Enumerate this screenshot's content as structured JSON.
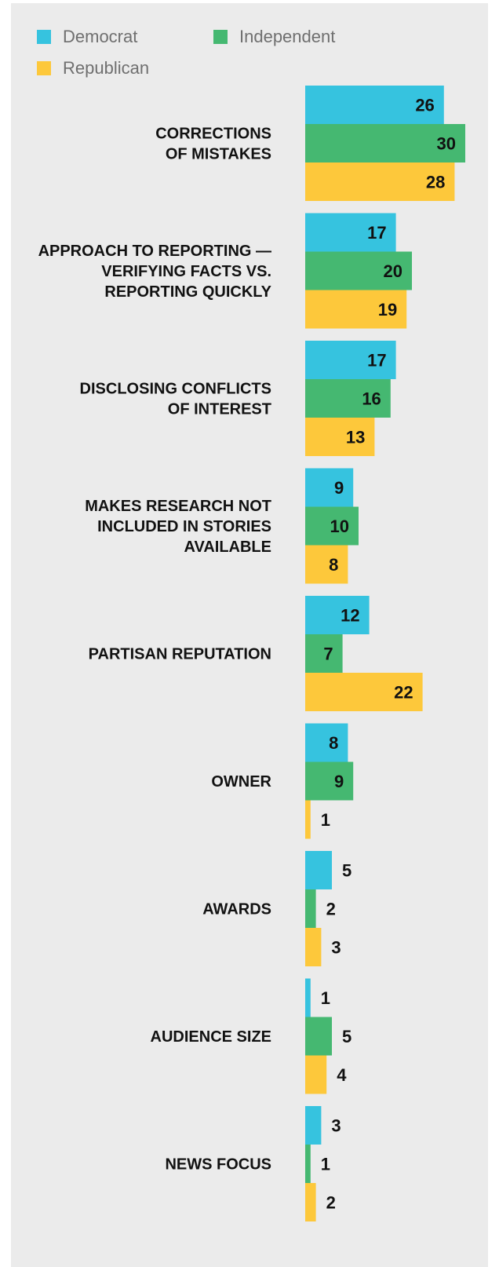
{
  "legend": [
    {
      "label": "Democrat",
      "color": "#36c3df"
    },
    {
      "label": "Independent",
      "color": "#45b871"
    },
    {
      "label": "Republican",
      "color": "#fdc83b"
    }
  ],
  "chart_data": {
    "type": "bar",
    "orientation": "horizontal",
    "categories": [
      [
        "CORRECTIONS",
        "OF MISTAKES"
      ],
      [
        "APPROACH TO REPORTING —",
        "VERIFYING FACTS VS.",
        "REPORTING QUICKLY"
      ],
      [
        "DISCLOSING CONFLICTS",
        "OF INTEREST"
      ],
      [
        "MAKES RESEARCH NOT",
        "INCLUDED IN STORIES",
        "AVAILABLE"
      ],
      [
        "PARTISAN REPUTATION"
      ],
      [
        "OWNER"
      ],
      [
        "AWARDS"
      ],
      [
        "AUDIENCE SIZE"
      ],
      [
        "NEWS FOCUS"
      ]
    ],
    "series": [
      {
        "name": "Democrat",
        "color": "#36c3df",
        "values": [
          26,
          17,
          17,
          9,
          12,
          8,
          5,
          1,
          3
        ]
      },
      {
        "name": "Independent",
        "color": "#45b871",
        "values": [
          30,
          20,
          16,
          10,
          7,
          9,
          2,
          5,
          1
        ]
      },
      {
        "name": "Republican",
        "color": "#fdc83b",
        "values": [
          28,
          19,
          13,
          8,
          22,
          1,
          3,
          4,
          2
        ]
      }
    ],
    "title": "",
    "xlabel": "",
    "ylabel": "",
    "xlim": [
      0,
      30
    ],
    "grid": false,
    "legend_position": "top-left"
  }
}
